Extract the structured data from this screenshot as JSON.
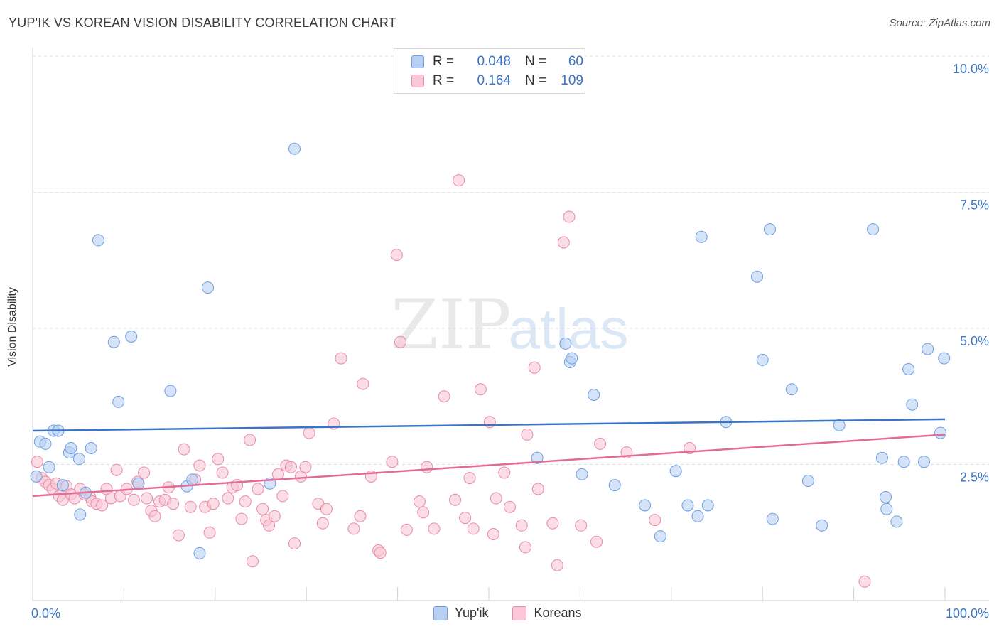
{
  "title": "YUP'IK VS KOREAN VISION DISABILITY CORRELATION CHART",
  "source": "Source: ZipAtlas.com",
  "watermark": {
    "zip": "ZIP",
    "atlas": "atlas"
  },
  "legend": {
    "rows": [
      {
        "r_label": "R =",
        "r_value": "0.048",
        "n_label": "N =",
        "n_value": "60",
        "fill": "#b7d0f2",
        "stroke": "#6e9ee0"
      },
      {
        "r_label": "R =",
        "r_value": "0.164",
        "n_label": "N =",
        "n_value": "109",
        "fill": "#f9c7d6",
        "stroke": "#e88aa8"
      }
    ],
    "bottom": [
      {
        "label": "Yup'ik",
        "fill": "#b7d0f2",
        "stroke": "#6e9ee0"
      },
      {
        "label": "Koreans",
        "fill": "#f9c7d6",
        "stroke": "#e88aa8"
      }
    ]
  },
  "chart_data": {
    "type": "scatter",
    "title": "YUP'IK VS KOREAN VISION DISABILITY CORRELATION CHART",
    "xlabel": "",
    "ylabel": "Vision Disability",
    "xlim": [
      0,
      100
    ],
    "ylim": [
      0,
      10
    ],
    "x_tick_labels": [
      "0.0%",
      "100.0%"
    ],
    "y_ticks": [
      2.5,
      5.0,
      7.5,
      10.0
    ],
    "y_tick_labels": [
      "2.5%",
      "5.0%",
      "7.5%",
      "10.0%"
    ],
    "grid": true,
    "series": [
      {
        "name": "Yup'ik",
        "color": "#3a74c4",
        "fill": "#b7d0f2",
        "stroke": "#6e9ee0",
        "trend": [
          [
            0,
            3.12
          ],
          [
            100,
            3.33
          ]
        ],
        "points": [
          [
            0.4,
            2.28
          ],
          [
            0.8,
            2.92
          ],
          [
            1.4,
            2.88
          ],
          [
            1.8,
            2.45
          ],
          [
            2.3,
            3.12
          ],
          [
            2.8,
            3.12
          ],
          [
            3.3,
            2.12
          ],
          [
            4.0,
            2.72
          ],
          [
            4.2,
            2.8
          ],
          [
            5.1,
            2.6
          ],
          [
            5.2,
            1.58
          ],
          [
            5.8,
            1.98
          ],
          [
            6.4,
            2.8
          ],
          [
            7.2,
            6.62
          ],
          [
            8.9,
            4.75
          ],
          [
            9.4,
            3.65
          ],
          [
            10.8,
            4.85
          ],
          [
            11.6,
            2.15
          ],
          [
            15.1,
            3.85
          ],
          [
            16.9,
            2.1
          ],
          [
            17.5,
            2.22
          ],
          [
            18.3,
            0.87
          ],
          [
            19.2,
            5.75
          ],
          [
            26.0,
            2.15
          ],
          [
            28.7,
            8.3
          ],
          [
            55.3,
            2.62
          ],
          [
            58.4,
            4.72
          ],
          [
            58.9,
            4.38
          ],
          [
            59.1,
            4.45
          ],
          [
            60.2,
            2.32
          ],
          [
            61.5,
            3.78
          ],
          [
            63.8,
            2.12
          ],
          [
            67.1,
            1.75
          ],
          [
            68.8,
            1.18
          ],
          [
            70.5,
            2.38
          ],
          [
            71.8,
            1.75
          ],
          [
            72.9,
            1.55
          ],
          [
            73.3,
            6.68
          ],
          [
            74.0,
            1.75
          ],
          [
            76.0,
            3.28
          ],
          [
            79.4,
            5.95
          ],
          [
            80.0,
            4.42
          ],
          [
            80.8,
            6.82
          ],
          [
            81.1,
            1.5
          ],
          [
            83.2,
            3.88
          ],
          [
            85.0,
            2.2
          ],
          [
            86.5,
            1.38
          ],
          [
            88.4,
            3.22
          ],
          [
            92.1,
            6.82
          ],
          [
            93.1,
            2.62
          ],
          [
            93.5,
            1.9
          ],
          [
            93.6,
            1.68
          ],
          [
            94.7,
            1.45
          ],
          [
            95.5,
            2.55
          ],
          [
            96.0,
            4.25
          ],
          [
            96.4,
            3.6
          ],
          [
            97.7,
            2.55
          ],
          [
            98.1,
            4.62
          ],
          [
            99.5,
            3.08
          ],
          [
            99.9,
            4.45
          ]
        ]
      },
      {
        "name": "Koreans",
        "color": "#e46b95",
        "fill": "#f9c7d6",
        "stroke": "#e88aa8",
        "trend": [
          [
            0,
            1.92
          ],
          [
            100,
            3.05
          ]
        ],
        "points": [
          [
            0.5,
            2.55
          ],
          [
            1.0,
            2.25
          ],
          [
            1.4,
            2.18
          ],
          [
            1.8,
            2.12
          ],
          [
            2.2,
            2.05
          ],
          [
            2.6,
            2.15
          ],
          [
            2.9,
            1.92
          ],
          [
            3.3,
            1.85
          ],
          [
            3.7,
            2.1
          ],
          [
            4.2,
            1.95
          ],
          [
            4.6,
            1.88
          ],
          [
            5.2,
            2.05
          ],
          [
            5.7,
            1.95
          ],
          [
            6.3,
            1.9
          ],
          [
            6.5,
            1.82
          ],
          [
            7.0,
            1.78
          ],
          [
            7.6,
            1.75
          ],
          [
            8.1,
            2.05
          ],
          [
            8.6,
            1.88
          ],
          [
            9.2,
            2.4
          ],
          [
            9.6,
            1.92
          ],
          [
            10.3,
            2.05
          ],
          [
            11.1,
            1.85
          ],
          [
            11.5,
            2.18
          ],
          [
            12.2,
            2.35
          ],
          [
            12.5,
            1.88
          ],
          [
            13.0,
            1.65
          ],
          [
            13.4,
            1.55
          ],
          [
            13.9,
            1.82
          ],
          [
            14.5,
            1.85
          ],
          [
            14.9,
            2.08
          ],
          [
            15.4,
            1.78
          ],
          [
            16.0,
            1.2
          ],
          [
            16.6,
            2.78
          ],
          [
            17.3,
            1.72
          ],
          [
            17.8,
            2.22
          ],
          [
            18.3,
            2.48
          ],
          [
            18.9,
            1.72
          ],
          [
            19.4,
            1.25
          ],
          [
            19.8,
            1.78
          ],
          [
            20.3,
            2.6
          ],
          [
            20.8,
            2.35
          ],
          [
            21.4,
            1.88
          ],
          [
            21.9,
            2.08
          ],
          [
            22.4,
            2.12
          ],
          [
            22.9,
            1.5
          ],
          [
            23.3,
            1.82
          ],
          [
            23.8,
            2.95
          ],
          [
            24.1,
            0.72
          ],
          [
            24.7,
            2.05
          ],
          [
            25.2,
            1.68
          ],
          [
            25.6,
            1.48
          ],
          [
            25.9,
            1.38
          ],
          [
            26.5,
            1.55
          ],
          [
            26.9,
            2.32
          ],
          [
            27.4,
            1.92
          ],
          [
            27.8,
            2.48
          ],
          [
            28.3,
            2.45
          ],
          [
            28.7,
            1.05
          ],
          [
            29.4,
            2.28
          ],
          [
            29.9,
            2.45
          ],
          [
            30.3,
            3.08
          ],
          [
            31.3,
            1.78
          ],
          [
            31.8,
            1.42
          ],
          [
            32.2,
            1.68
          ],
          [
            33.0,
            3.25
          ],
          [
            33.8,
            4.45
          ],
          [
            35.2,
            1.32
          ],
          [
            35.9,
            1.55
          ],
          [
            36.2,
            3.98
          ],
          [
            37.1,
            2.28
          ],
          [
            37.9,
            0.92
          ],
          [
            38.1,
            0.88
          ],
          [
            39.4,
            2.55
          ],
          [
            39.9,
            6.35
          ],
          [
            40.3,
            4.75
          ],
          [
            41.0,
            1.3
          ],
          [
            42.4,
            1.82
          ],
          [
            42.8,
            1.62
          ],
          [
            43.2,
            2.45
          ],
          [
            44.0,
            1.32
          ],
          [
            45.1,
            3.75
          ],
          [
            46.3,
            1.85
          ],
          [
            46.7,
            7.72
          ],
          [
            47.4,
            1.52
          ],
          [
            47.9,
            2.25
          ],
          [
            48.3,
            1.32
          ],
          [
            49.1,
            3.88
          ],
          [
            50.1,
            3.28
          ],
          [
            50.5,
            1.22
          ],
          [
            50.8,
            1.88
          ],
          [
            51.7,
            2.35
          ],
          [
            52.3,
            1.72
          ],
          [
            53.6,
            1.38
          ],
          [
            54.0,
            0.98
          ],
          [
            54.2,
            3.05
          ],
          [
            55.0,
            4.28
          ],
          [
            55.4,
            2.05
          ],
          [
            57.0,
            1.42
          ],
          [
            57.5,
            0.65
          ],
          [
            58.2,
            6.58
          ],
          [
            58.8,
            7.05
          ],
          [
            60.1,
            1.38
          ],
          [
            61.8,
            1.08
          ],
          [
            62.2,
            2.88
          ],
          [
            65.1,
            2.72
          ],
          [
            68.2,
            1.48
          ],
          [
            72.0,
            2.8
          ],
          [
            91.2,
            0.35
          ]
        ]
      }
    ]
  }
}
